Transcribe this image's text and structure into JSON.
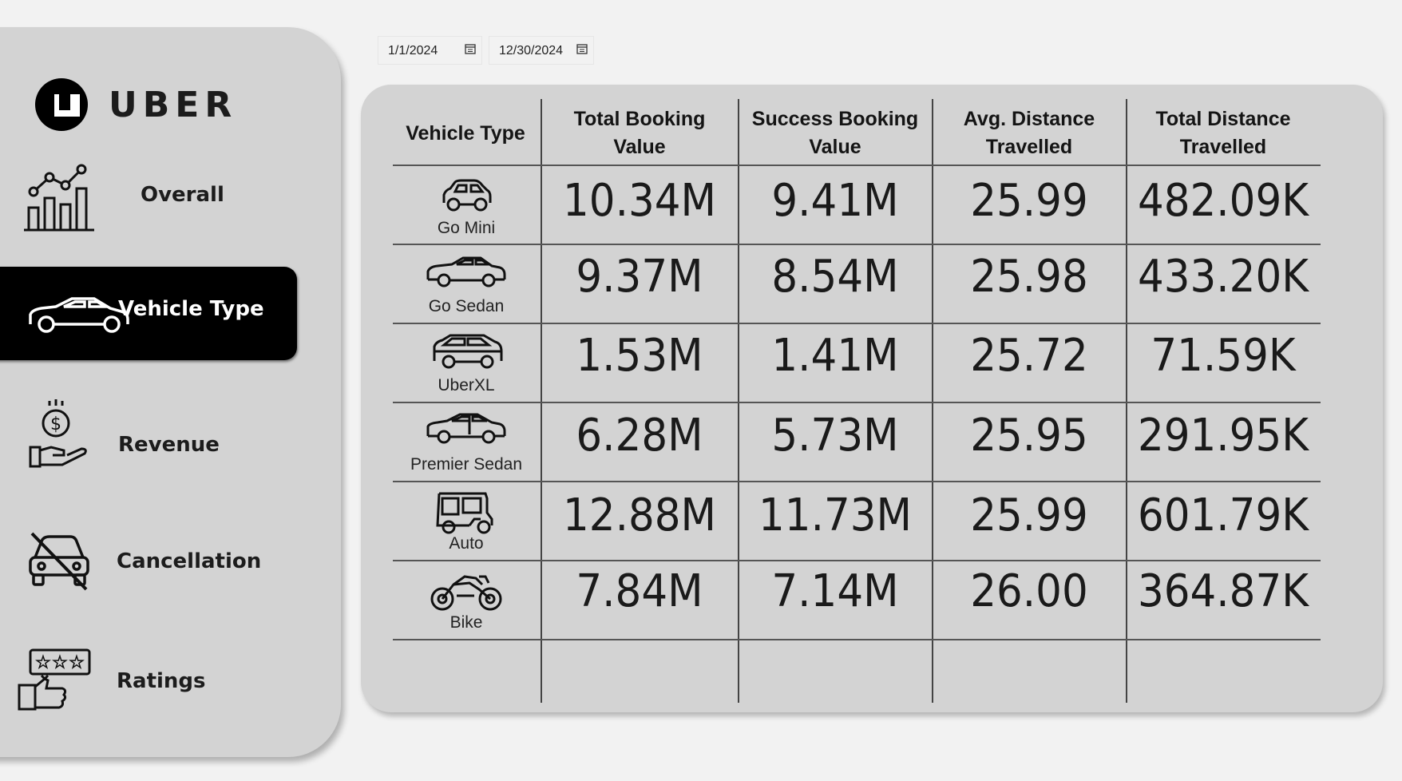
{
  "brand": {
    "name": "UBER"
  },
  "sidebar": {
    "items": [
      {
        "label": "Overall",
        "icon": "line-bar-chart-icon"
      },
      {
        "label": "Vehicle Type",
        "icon": "car-icon",
        "active": true
      },
      {
        "label": "Revenue",
        "icon": "money-hand-icon"
      },
      {
        "label": "Cancellation",
        "icon": "car-crossed-icon"
      },
      {
        "label": "Ratings",
        "icon": "stars-thumbs-up-icon"
      }
    ]
  },
  "filters": {
    "start_date": "1/1/2024",
    "end_date": "12/30/2024"
  },
  "table": {
    "headers": [
      "Vehicle Type",
      "Total Booking Value",
      "Success Booking Value",
      "Avg. Distance Travelled",
      "Total Distance Travelled"
    ],
    "header_lines": [
      [
        "Vehicle Type"
      ],
      [
        "Total Booking",
        "Value"
      ],
      [
        "Success Booking",
        "Value"
      ],
      [
        "Avg. Distance",
        "Travelled"
      ],
      [
        "Total Distance",
        "Travelled"
      ]
    ],
    "rows": [
      {
        "vehicle": "Go Mini",
        "icon": "mini-car-icon",
        "total_booking": "10.34M",
        "success_booking": "9.41M",
        "avg_distance": "25.99",
        "total_distance": "482.09K"
      },
      {
        "vehicle": "Go Sedan",
        "icon": "sedan-icon",
        "total_booking": "9.37M",
        "success_booking": "8.54M",
        "avg_distance": "25.98",
        "total_distance": "433.20K"
      },
      {
        "vehicle": "UberXL",
        "icon": "suv-icon",
        "total_booking": "1.53M",
        "success_booking": "1.41M",
        "avg_distance": "25.72",
        "total_distance": "71.59K"
      },
      {
        "vehicle": "Premier Sedan",
        "icon": "premier-sedan-icon",
        "total_booking": "6.28M",
        "success_booking": "5.73M",
        "avg_distance": "25.95",
        "total_distance": "291.95K"
      },
      {
        "vehicle": "Auto",
        "icon": "auto-rickshaw-icon",
        "total_booking": "12.88M",
        "success_booking": "11.73M",
        "avg_distance": "25.99",
        "total_distance": "601.79K"
      },
      {
        "vehicle": "Bike",
        "icon": "motorbike-icon",
        "total_booking": "7.84M",
        "success_booking": "7.14M",
        "avg_distance": "26.00",
        "total_distance": "364.87K"
      }
    ]
  }
}
